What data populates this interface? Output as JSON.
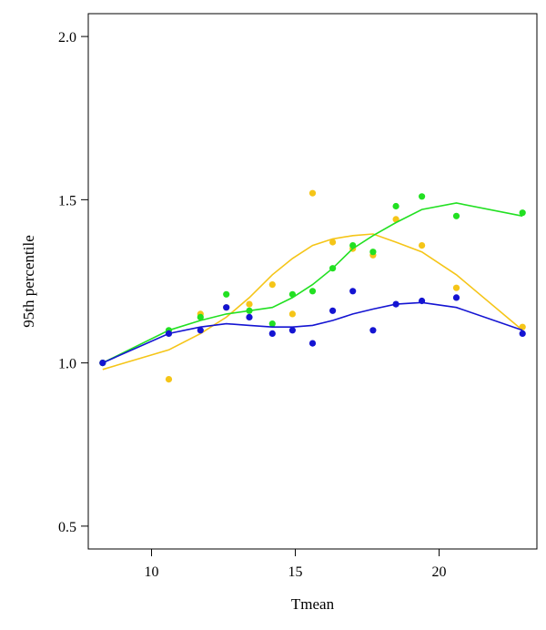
{
  "chart_data": {
    "type": "scatter",
    "title": "",
    "xlabel": "Tmean",
    "ylabel": "95th percentile",
    "xlim": [
      7.8,
      23.4
    ],
    "ylim": [
      0.43,
      2.07
    ],
    "xticks": [
      10,
      15,
      20
    ],
    "yticks": [
      0.5,
      1.0,
      1.5,
      2.0
    ],
    "xtick_labels": [
      "10",
      "15",
      "20"
    ],
    "ytick_labels": [
      "0.5",
      "1.0",
      "1.5",
      "2.0"
    ],
    "grid": false,
    "legend": "none",
    "series": [
      {
        "color": "#f5c518",
        "points": [
          {
            "x": 8.3,
            "y": 1.0
          },
          {
            "x": 10.6,
            "y": 0.95
          },
          {
            "x": 11.7,
            "y": 1.15
          },
          {
            "x": 12.6,
            "y": 1.17
          },
          {
            "x": 13.4,
            "y": 1.18
          },
          {
            "x": 14.2,
            "y": 1.24
          },
          {
            "x": 14.9,
            "y": 1.15
          },
          {
            "x": 15.6,
            "y": 1.52
          },
          {
            "x": 16.3,
            "y": 1.37
          },
          {
            "x": 17.0,
            "y": 1.35
          },
          {
            "x": 17.7,
            "y": 1.33
          },
          {
            "x": 18.5,
            "y": 1.44
          },
          {
            "x": 19.4,
            "y": 1.36
          },
          {
            "x": 20.6,
            "y": 1.23
          },
          {
            "x": 22.9,
            "y": 1.11
          }
        ],
        "curve": [
          {
            "x": 8.3,
            "y": 0.98
          },
          {
            "x": 10.6,
            "y": 1.04
          },
          {
            "x": 11.7,
            "y": 1.09
          },
          {
            "x": 12.6,
            "y": 1.14
          },
          {
            "x": 13.4,
            "y": 1.2
          },
          {
            "x": 14.2,
            "y": 1.27
          },
          {
            "x": 14.9,
            "y": 1.32
          },
          {
            "x": 15.6,
            "y": 1.36
          },
          {
            "x": 16.3,
            "y": 1.38
          },
          {
            "x": 17.0,
            "y": 1.39
          },
          {
            "x": 17.7,
            "y": 1.395
          },
          {
            "x": 18.5,
            "y": 1.37
          },
          {
            "x": 19.4,
            "y": 1.34
          },
          {
            "x": 20.6,
            "y": 1.27
          },
          {
            "x": 22.9,
            "y": 1.1
          }
        ]
      },
      {
        "color": "#22e022",
        "points": [
          {
            "x": 8.3,
            "y": 1.0
          },
          {
            "x": 10.6,
            "y": 1.1
          },
          {
            "x": 11.7,
            "y": 1.14
          },
          {
            "x": 12.6,
            "y": 1.21
          },
          {
            "x": 13.4,
            "y": 1.16
          },
          {
            "x": 14.2,
            "y": 1.12
          },
          {
            "x": 14.9,
            "y": 1.21
          },
          {
            "x": 15.6,
            "y": 1.22
          },
          {
            "x": 16.3,
            "y": 1.29
          },
          {
            "x": 17.0,
            "y": 1.36
          },
          {
            "x": 17.7,
            "y": 1.34
          },
          {
            "x": 18.5,
            "y": 1.48
          },
          {
            "x": 19.4,
            "y": 1.51
          },
          {
            "x": 20.6,
            "y": 1.45
          },
          {
            "x": 22.9,
            "y": 1.46
          }
        ],
        "curve": [
          {
            "x": 8.3,
            "y": 1.0
          },
          {
            "x": 10.6,
            "y": 1.1
          },
          {
            "x": 11.7,
            "y": 1.13
          },
          {
            "x": 12.6,
            "y": 1.15
          },
          {
            "x": 13.4,
            "y": 1.16
          },
          {
            "x": 14.2,
            "y": 1.17
          },
          {
            "x": 14.9,
            "y": 1.2
          },
          {
            "x": 15.6,
            "y": 1.24
          },
          {
            "x": 16.3,
            "y": 1.29
          },
          {
            "x": 17.0,
            "y": 1.35
          },
          {
            "x": 17.7,
            "y": 1.39
          },
          {
            "x": 18.5,
            "y": 1.43
          },
          {
            "x": 19.4,
            "y": 1.47
          },
          {
            "x": 20.6,
            "y": 1.49
          },
          {
            "x": 22.9,
            "y": 1.45
          }
        ]
      },
      {
        "color": "#1414d2",
        "points": [
          {
            "x": 8.3,
            "y": 1.0
          },
          {
            "x": 10.6,
            "y": 1.09
          },
          {
            "x": 11.7,
            "y": 1.1
          },
          {
            "x": 12.6,
            "y": 1.17
          },
          {
            "x": 13.4,
            "y": 1.14
          },
          {
            "x": 14.2,
            "y": 1.09
          },
          {
            "x": 14.9,
            "y": 1.1
          },
          {
            "x": 15.6,
            "y": 1.06
          },
          {
            "x": 16.3,
            "y": 1.16
          },
          {
            "x": 17.0,
            "y": 1.22
          },
          {
            "x": 17.7,
            "y": 1.1
          },
          {
            "x": 18.5,
            "y": 1.18
          },
          {
            "x": 19.4,
            "y": 1.19
          },
          {
            "x": 20.6,
            "y": 1.2
          },
          {
            "x": 22.9,
            "y": 1.09
          }
        ],
        "curve": [
          {
            "x": 8.3,
            "y": 1.0
          },
          {
            "x": 10.6,
            "y": 1.09
          },
          {
            "x": 11.7,
            "y": 1.11
          },
          {
            "x": 12.6,
            "y": 1.12
          },
          {
            "x": 13.4,
            "y": 1.115
          },
          {
            "x": 14.2,
            "y": 1.11
          },
          {
            "x": 14.9,
            "y": 1.11
          },
          {
            "x": 15.6,
            "y": 1.115
          },
          {
            "x": 16.3,
            "y": 1.13
          },
          {
            "x": 17.0,
            "y": 1.15
          },
          {
            "x": 17.7,
            "y": 1.165
          },
          {
            "x": 18.5,
            "y": 1.18
          },
          {
            "x": 19.4,
            "y": 1.185
          },
          {
            "x": 20.6,
            "y": 1.17
          },
          {
            "x": 22.9,
            "y": 1.1
          }
        ]
      }
    ]
  }
}
